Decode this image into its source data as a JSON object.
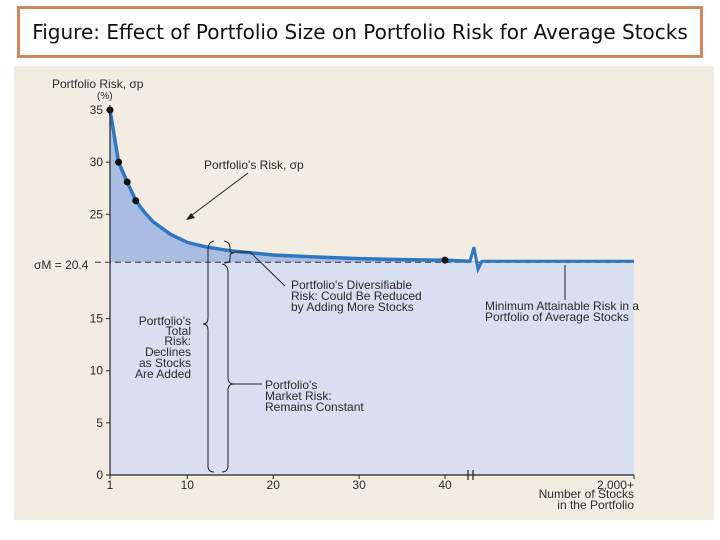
{
  "header": {
    "title": "Figure: Effect of Portfolio Size on Portfolio Risk for Average Stocks"
  },
  "chart_data": {
    "type": "area",
    "ylabel": "Portfolio Risk, σp",
    "ylabel_unit": "(%)",
    "xlabel_line1": "Number of Stocks",
    "xlabel_line2": "in the Portfolio",
    "xlim": [
      1,
      45
    ],
    "ylim": [
      0,
      35
    ],
    "x_ticks": [
      "1",
      "10",
      "20",
      "30",
      "40"
    ],
    "x_tick_values": [
      1,
      10,
      20,
      30,
      40
    ],
    "x_extra_tick": "2,000+",
    "y_ticks": [
      "0",
      "5",
      "10",
      "15",
      "25",
      "30",
      "35"
    ],
    "y_tick_values": [
      0,
      5,
      10,
      15,
      25,
      30,
      35
    ],
    "market_risk_value": 20.4,
    "market_risk_label": "σM = 20.4",
    "series": [
      {
        "x": [
          1,
          2,
          3,
          4,
          5,
          6,
          8,
          10,
          12,
          15,
          20,
          25,
          30,
          35,
          40,
          45
        ],
        "values": [
          35,
          30,
          28.1,
          26.3,
          25.2,
          24.3,
          23.1,
          22.3,
          21.9,
          21.5,
          21.1,
          20.9,
          20.75,
          20.65,
          20.6,
          20.5
        ]
      }
    ],
    "marked_points": {
      "x": [
        1,
        2,
        3,
        4,
        40
      ],
      "y": [
        35,
        30,
        28.1,
        26.3,
        20.6
      ]
    },
    "colors": {
      "curve": "#2f78c0",
      "area_upper": "#a9bde3",
      "area_lower": "#d7dff0",
      "dots": "#111111"
    },
    "annotations": {
      "portfolio_risk": "Portfolio's Risk, σp",
      "diversifiable": [
        "Portfolio's Diversifiable",
        "Risk: Could Be Reduced",
        "by Adding More Stocks"
      ],
      "minimum": [
        "Minimum Attainable Risk in a",
        "Portfolio of Average Stocks"
      ],
      "total": [
        "Portfolio's",
        "Total",
        "Risk:",
        "Declines",
        "as Stocks",
        "Are Added"
      ],
      "market": [
        "Portfolio's",
        "Market Risk:",
        "Remains Constant"
      ]
    }
  }
}
